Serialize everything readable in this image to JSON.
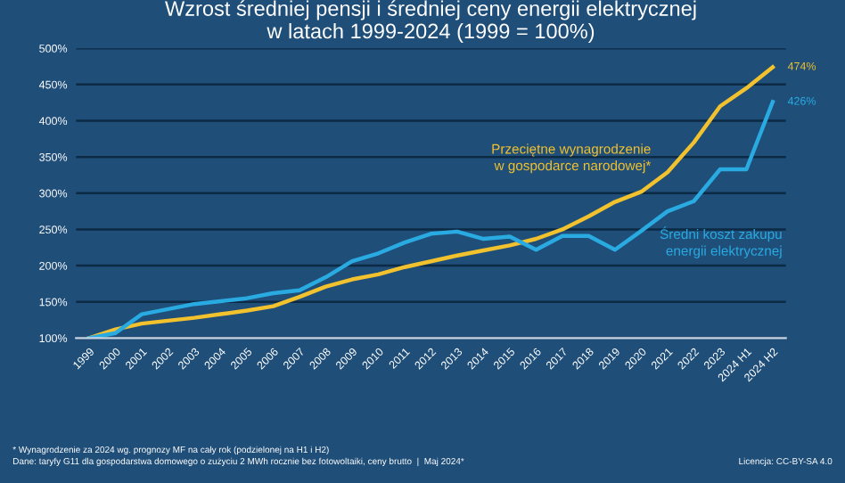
{
  "chart_data": {
    "type": "line",
    "title": "Wzrost średniej pensji i średniej ceny energii elektrycznej\nw latach 1999-2024 (1999 = 100%)",
    "categories": [
      "1999",
      "2000",
      "2001",
      "2002",
      "2003",
      "2004",
      "2005",
      "2006",
      "2007",
      "2008",
      "2009",
      "2010",
      "2011",
      "2012",
      "2013",
      "2014",
      "2015",
      "2016",
      "2017",
      "2018",
      "2019",
      "2020",
      "2021",
      "2022",
      "2023",
      "2024 H1",
      "2024 H2"
    ],
    "series": [
      {
        "name": "Przeciętne wynagrodzenie\nw gospodarce narodowej*",
        "color": "#f2c12e",
        "values": [
          100,
          112,
          120,
          124,
          128,
          133,
          138,
          144,
          157,
          171,
          181,
          188,
          198,
          206,
          214,
          221,
          228,
          237,
          250,
          268,
          288,
          302,
          329,
          370,
          420,
          445,
          474
        ],
        "value_labels": [
          null,
          null,
          null,
          null,
          null,
          null,
          null,
          null,
          null,
          null,
          null,
          null,
          null,
          null,
          null,
          null,
          null,
          null,
          null,
          null,
          null,
          null,
          null,
          null,
          null,
          null,
          "474%"
        ]
      },
      {
        "name": "Średni koszt zakupu\nenergii elektrycznej",
        "color": "#29abe2",
        "values": [
          100,
          107,
          133,
          140,
          147,
          151,
          155,
          162,
          166,
          184,
          206,
          217,
          232,
          244,
          247,
          237,
          240,
          222,
          241,
          241,
          222,
          248,
          275,
          289,
          333,
          333,
          426
        ],
        "value_labels": [
          null,
          null,
          null,
          null,
          null,
          null,
          null,
          null,
          null,
          null,
          null,
          null,
          null,
          null,
          null,
          null,
          null,
          null,
          null,
          null,
          null,
          null,
          null,
          null,
          null,
          null,
          "426%"
        ]
      }
    ],
    "ylim": [
      100,
      500
    ],
    "yticks": [
      {
        "value": 100,
        "label": "100%"
      },
      {
        "value": 150,
        "label": "150%"
      },
      {
        "value": 200,
        "label": "200%"
      },
      {
        "value": 250,
        "label": "250%"
      },
      {
        "value": 300,
        "label": "300%"
      },
      {
        "value": 350,
        "label": "350%"
      },
      {
        "value": 400,
        "label": "400%"
      },
      {
        "value": 450,
        "label": "450%"
      },
      {
        "value": 500,
        "label": "500%"
      }
    ],
    "grid": "y",
    "legend": false,
    "marker": "none",
    "line_style": "solid",
    "annotations": [
      "* Wynagrodzenie za 2024 wg. prognozy MF na cały rok (podzielonej na H1 i H2)\nDane: taryfy G11 dla gospodarstwa domowego o zużyciu 2 MWh rocznie bez fotowoltaiki, ceny brutto  |  Maj 2024*",
      "Licencja: CC-BY-SA 4.0"
    ]
  }
}
